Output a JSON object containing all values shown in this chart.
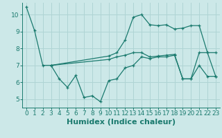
{
  "xlabel": "Humidex (Indice chaleur)",
  "background_color": "#cce8e8",
  "line_color": "#1a7a6e",
  "xlim": [
    -0.5,
    23.5
  ],
  "ylim": [
    4.5,
    10.7
  ],
  "xticks": [
    0,
    1,
    2,
    3,
    4,
    5,
    6,
    7,
    8,
    9,
    10,
    11,
    12,
    13,
    14,
    15,
    16,
    17,
    18,
    19,
    20,
    21,
    22,
    23
  ],
  "yticks": [
    5,
    6,
    7,
    8,
    9,
    10
  ],
  "line1_x": [
    0,
    1,
    2,
    3,
    10,
    11,
    12,
    13,
    14,
    15,
    16,
    17,
    18,
    19,
    20,
    21,
    22,
    23
  ],
  "line1_y": [
    10.45,
    9.05,
    7.0,
    7.0,
    7.55,
    7.75,
    8.5,
    9.85,
    10.0,
    9.4,
    9.35,
    9.4,
    9.15,
    9.2,
    9.35,
    9.35,
    7.75,
    7.75
  ],
  "line2_x": [
    3,
    4,
    5,
    6,
    7,
    8,
    9,
    10,
    11,
    12,
    13,
    14,
    15,
    16,
    17,
    18,
    19,
    20,
    21,
    22,
    23
  ],
  "line2_y": [
    7.0,
    6.2,
    5.7,
    6.4,
    5.1,
    5.2,
    4.85,
    6.1,
    6.2,
    6.85,
    7.0,
    7.5,
    7.4,
    7.5,
    7.5,
    7.6,
    6.2,
    6.2,
    7.0,
    6.35,
    6.35
  ],
  "line3_x": [
    3,
    10,
    11,
    12,
    13,
    14,
    15,
    16,
    17,
    18,
    19,
    20,
    21,
    22,
    23
  ],
  "line3_y": [
    7.0,
    7.35,
    7.5,
    7.6,
    7.75,
    7.75,
    7.5,
    7.55,
    7.6,
    7.65,
    6.2,
    6.2,
    7.75,
    7.75,
    6.35
  ],
  "grid_color": "#afd4d4",
  "xlabel_fontsize": 8,
  "tick_fontsize": 6.5
}
